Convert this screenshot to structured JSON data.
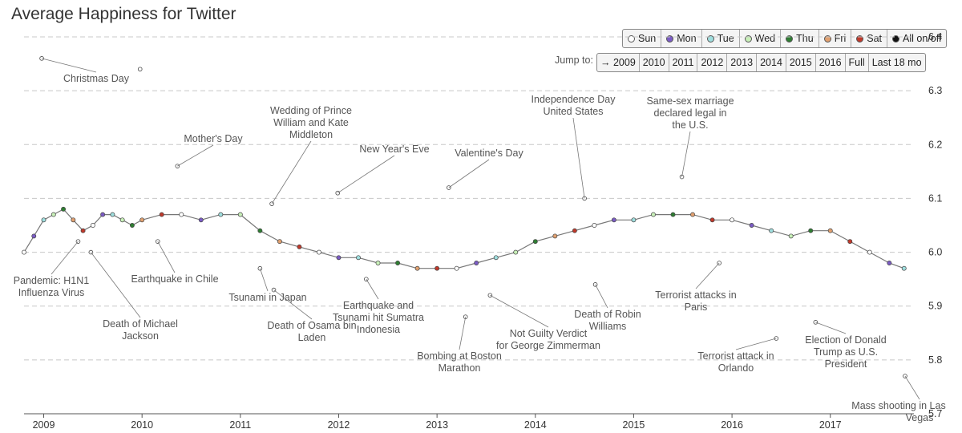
{
  "title": "Average Happiness for Twitter",
  "day_toggles": [
    {
      "label": "Sun",
      "color": "#ffffff"
    },
    {
      "label": "Mon",
      "color": "#7b5cc4"
    },
    {
      "label": "Tue",
      "color": "#9fdede"
    },
    {
      "label": "Wed",
      "color": "#c8f0b8"
    },
    {
      "label": "Thu",
      "color": "#2e7d32"
    },
    {
      "label": "Fri",
      "color": "#e0a070"
    },
    {
      "label": "Sat",
      "color": "#c0392b"
    },
    {
      "label": "All on/off",
      "color": "#111111"
    }
  ],
  "jump": {
    "label": "Jump to:",
    "buttons": [
      "→ 2009",
      "2010",
      "2011",
      "2012",
      "2013",
      "2014",
      "2015",
      "2016",
      "Full",
      "Last 18 mo"
    ]
  },
  "chart_data": {
    "type": "line",
    "title": "Average Happiness for Twitter",
    "xlabel": "",
    "ylabel": "",
    "xlim": [
      2008.8,
      2017.85
    ],
    "ylim": [
      5.7,
      6.4
    ],
    "x_ticks": [
      2009,
      2010,
      2011,
      2012,
      2013,
      2014,
      2015,
      2016,
      2017
    ],
    "x_tick_labels": [
      "2009",
      "2010",
      "2011",
      "2012",
      "2013",
      "2014",
      "2015",
      "2016",
      "2017"
    ],
    "y_ticks": [
      5.7,
      5.8,
      5.9,
      6.0,
      6.1,
      6.2,
      6.3,
      6.4
    ],
    "y_tick_labels": [
      "5.7",
      "5.8",
      "5.9",
      "6.0",
      "6.1",
      "6.2",
      "6.3",
      "6.4"
    ],
    "grid": "horizontal dashed",
    "series": [
      {
        "x": [
          2008.8,
          2008.9,
          2009.0,
          2009.1,
          2009.2,
          2009.3,
          2009.4,
          2009.5,
          2009.6,
          2009.7,
          2009.8,
          2009.9,
          2010.0,
          2010.2,
          2010.4,
          2010.6,
          2010.8,
          2011.0,
          2011.2,
          2011.4,
          2011.6,
          2011.8,
          2012.0,
          2012.2,
          2012.4,
          2012.6,
          2012.8,
          2013.0,
          2013.2,
          2013.4,
          2013.6,
          2013.8,
          2014.0,
          2014.2,
          2014.4,
          2014.6,
          2014.8,
          2015.0,
          2015.2,
          2015.4,
          2015.6,
          2015.8,
          2016.0,
          2016.2,
          2016.4,
          2016.6,
          2016.8,
          2017.0,
          2017.2,
          2017.4,
          2017.6,
          2017.75
        ],
        "y": [
          6.0,
          6.03,
          6.06,
          6.07,
          6.08,
          6.06,
          6.04,
          6.05,
          6.07,
          6.07,
          6.06,
          6.05,
          6.06,
          6.07,
          6.07,
          6.06,
          6.07,
          6.07,
          6.04,
          6.02,
          6.01,
          6.0,
          5.99,
          5.99,
          5.98,
          5.98,
          5.97,
          5.97,
          5.97,
          5.98,
          5.99,
          6.0,
          6.02,
          6.03,
          6.04,
          6.05,
          6.06,
          6.06,
          6.07,
          6.07,
          6.07,
          6.06,
          6.06,
          6.05,
          6.04,
          6.03,
          6.04,
          6.04,
          6.02,
          6.0,
          5.98,
          5.97
        ]
      }
    ],
    "events": [
      {
        "label": "Christmas Day",
        "x": 2008.98,
        "y": 6.36
      },
      {
        "label": "Pandemic: H1N1 Influenza Virus",
        "x": 2009.35,
        "y": 6.02
      },
      {
        "label": "Death of Michael Jackson",
        "x": 2009.48,
        "y": 6.0
      },
      {
        "label": "Christmas",
        "x": 2009.98,
        "y": 6.34
      },
      {
        "label": "Earthquake in Chile",
        "x": 2010.16,
        "y": 6.02
      },
      {
        "label": "Mother's Day",
        "x": 2010.36,
        "y": 6.16
      },
      {
        "label": "Tsunami in Japan",
        "x": 2011.2,
        "y": 5.97
      },
      {
        "label": "Wedding of Prince William and Kate Middleton",
        "x": 2011.32,
        "y": 6.09
      },
      {
        "label": "Death of Osama bin Laden",
        "x": 2011.34,
        "y": 5.93
      },
      {
        "label": "New Year's Eve",
        "x": 2011.99,
        "y": 6.11
      },
      {
        "label": "Earthquake and Tsunami hit Sumatra Indonesia",
        "x": 2012.28,
        "y": 5.95
      },
      {
        "label": "Valentine's Day",
        "x": 2013.12,
        "y": 6.12
      },
      {
        "label": "Bombing at Boston Marathon",
        "x": 2013.29,
        "y": 5.88
      },
      {
        "label": "Not Guilty Verdict for George Zimmerman",
        "x": 2013.54,
        "y": 5.92
      },
      {
        "label": "Independence Day United States",
        "x": 2014.5,
        "y": 6.1
      },
      {
        "label": "Death of Robin Williams",
        "x": 2014.61,
        "y": 5.94
      },
      {
        "label": "Same-sex marriage declared legal in the U.S.",
        "x": 2015.49,
        "y": 6.14
      },
      {
        "label": "Terrorist attacks in Paris",
        "x": 2015.87,
        "y": 5.98
      },
      {
        "label": "Terrorist attack in Orlando",
        "x": 2016.45,
        "y": 5.84
      },
      {
        "label": "Election of Donald Trump as U.S. President",
        "x": 2016.85,
        "y": 5.87
      },
      {
        "label": "Mass shooting in Las Vegas",
        "x": 2017.76,
        "y": 5.77
      }
    ]
  }
}
